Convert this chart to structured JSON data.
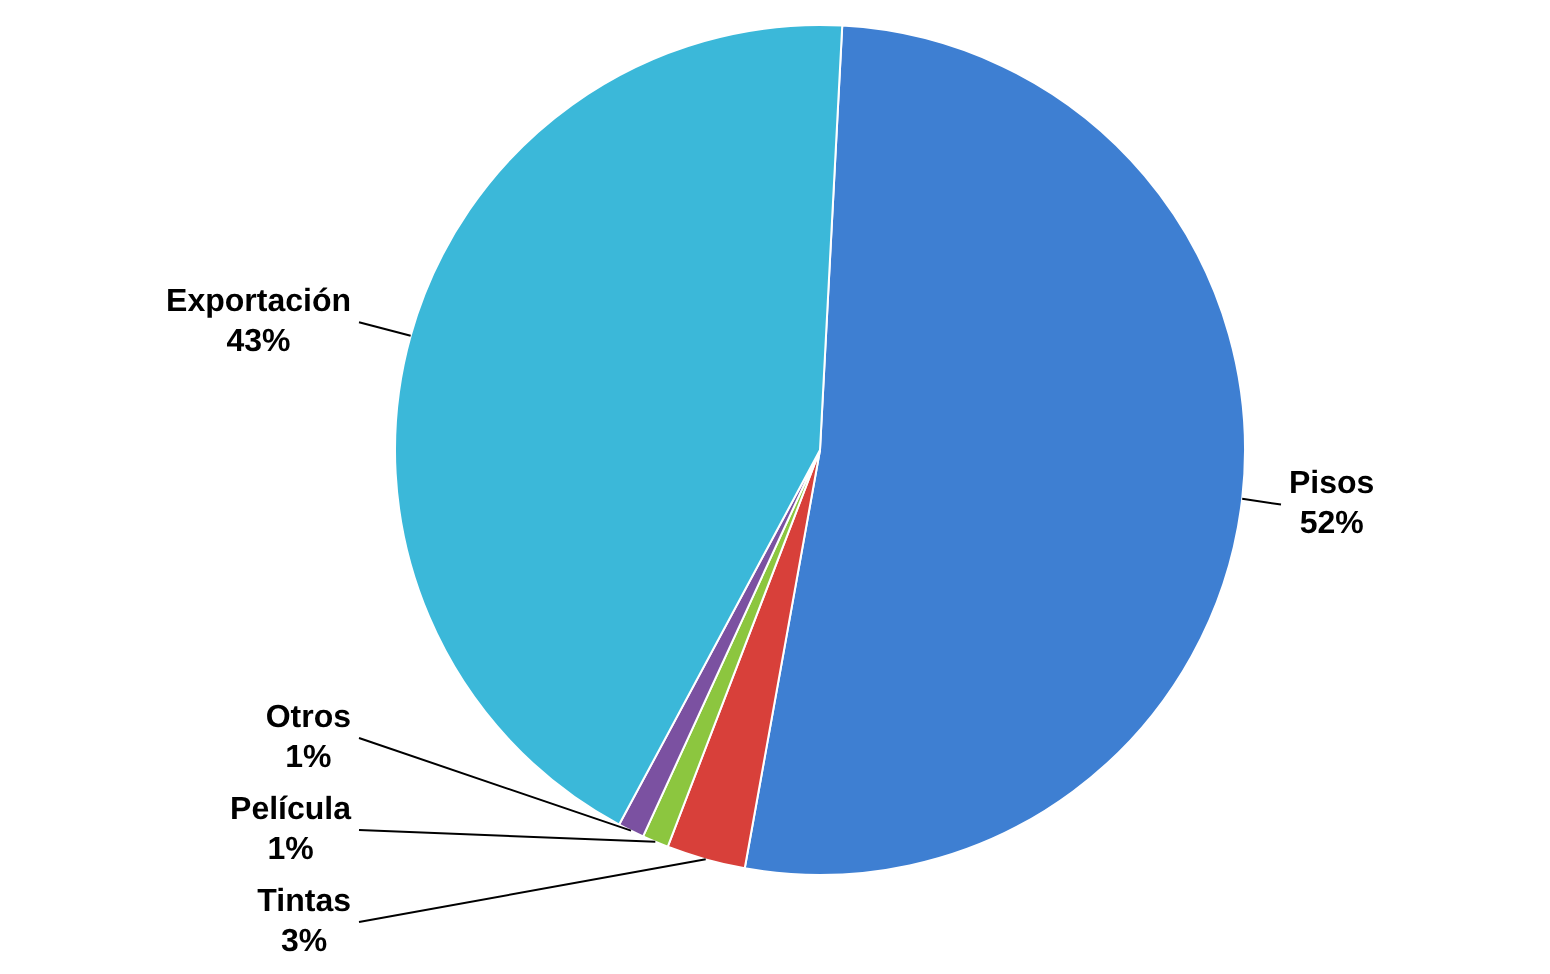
{
  "chart_data": {
    "type": "pie",
    "categories": [
      "Pisos",
      "Tintas",
      "Película",
      "Otros",
      "Exportación"
    ],
    "values": [
      52,
      3,
      1,
      1,
      43
    ],
    "value_labels": [
      "52%",
      "3%",
      "1%",
      "1%",
      "43%"
    ],
    "colors": [
      "#3e7fd2",
      "#d8403a",
      "#8cc63f",
      "#7b51a1",
      "#3bb8d9"
    ],
    "legend": false
  }
}
